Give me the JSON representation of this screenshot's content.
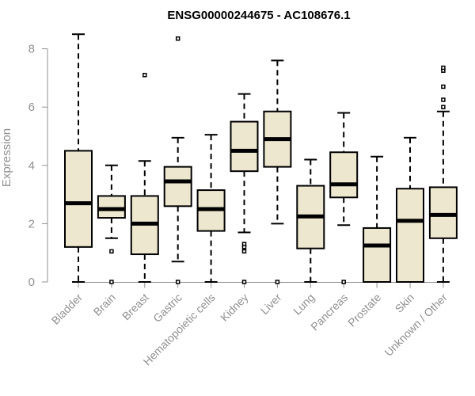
{
  "chart_data": {
    "type": "boxplot",
    "title": "ENSG00000244675 - AC108676.1",
    "xlabel": "",
    "ylabel": "Expression",
    "ylim": [
      0,
      8.6
    ],
    "yticks": [
      0,
      2,
      4,
      6,
      8
    ],
    "grid": false,
    "colors": {
      "box_fill": "#ede7cf",
      "stroke": "#000000",
      "axis": "#909090"
    },
    "categories": [
      "Bladder",
      "Brain",
      "Breast",
      "Gastric",
      "Hematopoietic cells",
      "Kidney",
      "Liver",
      "Lung",
      "Pancreas",
      "Prostate",
      "Skin",
      "Unknown / Other"
    ],
    "boxes": [
      {
        "category": "Bladder",
        "min": 0,
        "q1": 1.2,
        "median": 2.7,
        "q3": 4.5,
        "max": 8.5,
        "outliers": []
      },
      {
        "category": "Brain",
        "min": 1.5,
        "q1": 2.2,
        "median": 2.5,
        "q3": 2.95,
        "max": 4.0,
        "outliers": [
          1.05,
          0
        ]
      },
      {
        "category": "Breast",
        "min": 0,
        "q1": 0.95,
        "median": 2.0,
        "q3": 2.95,
        "max": 4.15,
        "outliers": [
          7.1
        ]
      },
      {
        "category": "Gastric",
        "min": 0.7,
        "q1": 2.6,
        "median": 3.45,
        "q3": 3.95,
        "max": 4.95,
        "outliers": [
          8.35,
          0
        ]
      },
      {
        "category": "Hematopoietic cells",
        "min": 0,
        "q1": 1.75,
        "median": 2.5,
        "q3": 3.15,
        "max": 5.05,
        "outliers": []
      },
      {
        "category": "Kidney",
        "min": 1.7,
        "q1": 3.8,
        "median": 4.5,
        "q3": 5.5,
        "max": 6.45,
        "outliers": [
          1.3,
          1.2,
          1.05,
          0
        ]
      },
      {
        "category": "Liver",
        "min": 2.0,
        "q1": 3.95,
        "median": 4.9,
        "q3": 5.85,
        "max": 7.6,
        "outliers": [
          0
        ]
      },
      {
        "category": "Lung",
        "min": 0,
        "q1": 1.15,
        "median": 2.25,
        "q3": 3.3,
        "max": 4.2,
        "outliers": []
      },
      {
        "category": "Pancreas",
        "min": 1.95,
        "q1": 2.9,
        "median": 3.35,
        "q3": 4.45,
        "max": 5.8,
        "outliers": [
          0
        ]
      },
      {
        "category": "Prostate",
        "min": 0,
        "q1": 0,
        "median": 1.25,
        "q3": 1.85,
        "max": 4.3,
        "outliers": []
      },
      {
        "category": "Skin",
        "min": 0,
        "q1": 0,
        "median": 2.1,
        "q3": 3.2,
        "max": 4.95,
        "outliers": []
      },
      {
        "category": "Unknown / Other",
        "min": 0,
        "q1": 1.5,
        "median": 2.3,
        "q3": 3.25,
        "max": 5.85,
        "outliers": [
          6.0,
          6.25,
          6.7,
          7.25,
          7.35
        ]
      }
    ]
  }
}
